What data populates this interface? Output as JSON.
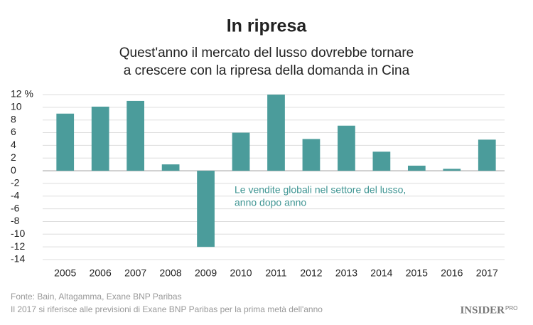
{
  "chart_data": {
    "type": "bar",
    "title": "In ripresa",
    "subtitle": [
      "Quest'anno il mercato del lusso dovrebbe tornare",
      "a crescere con la ripresa della domanda in Cina"
    ],
    "categories": [
      "2005",
      "2006",
      "2007",
      "2008",
      "2009",
      "2010",
      "2011",
      "2012",
      "2013",
      "2014",
      "2015",
      "2016",
      "2017"
    ],
    "values": [
      9,
      10.1,
      11,
      1,
      -12,
      6,
      12,
      5,
      7.1,
      3,
      0.8,
      0.3,
      4.9
    ],
    "color": "#4b9c9b",
    "ylim": [
      -14,
      12
    ],
    "yticks": [
      -14,
      -12,
      -10,
      -8,
      -6,
      -4,
      -2,
      0,
      2,
      4,
      6,
      8,
      10,
      {
        "value": 12,
        "label": "12 %"
      }
    ],
    "grid": true,
    "annotation": [
      "Le vendite globali nel settore del lusso,",
      "anno dopo anno"
    ],
    "footnotes": [
      "Fonte: Bain, Altagamma, Exane BNP Paribas",
      "Il 2017 si riferisce alle previsioni di Exane BNP Paribas per la prima metà dell'anno"
    ],
    "logo": {
      "text": "INSIDER",
      "suffix": "PRO"
    }
  }
}
